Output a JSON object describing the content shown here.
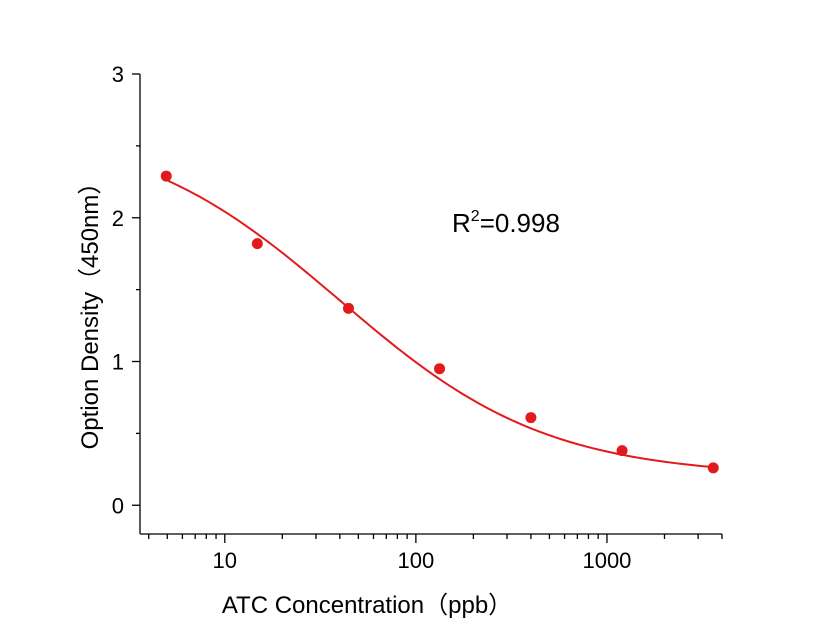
{
  "chart_data": {
    "type": "scatter",
    "xlabel": "ATC Concentration（ppb）",
    "ylabel": "Option Density（450nm）",
    "x_scale": "log",
    "xlim": [
      3.6,
      4000
    ],
    "ylim": [
      -0.2,
      3
    ],
    "x_ticks": [
      10,
      100,
      1000
    ],
    "x_tick_labels": [
      "10",
      "100",
      "1000"
    ],
    "y_ticks": [
      0,
      1,
      2,
      3
    ],
    "y_tick_labels": [
      "0",
      "1",
      "2",
      "3"
    ],
    "points": [
      {
        "x": 4.94,
        "y": 2.29
      },
      {
        "x": 14.8,
        "y": 1.82
      },
      {
        "x": 44.4,
        "y": 1.37
      },
      {
        "x": 133,
        "y": 0.95
      },
      {
        "x": 400,
        "y": 0.61
      },
      {
        "x": 1200,
        "y": 0.38
      },
      {
        "x": 3600,
        "y": 0.26
      }
    ],
    "fit": {
      "model": "4PL",
      "top": 2.65,
      "bottom": 0.2,
      "ec50": 40,
      "hill": 0.8
    },
    "annotation": {
      "prefix": "R",
      "superscript": "2",
      "suffix": "=0.998"
    },
    "colors": {
      "series": "#e31a1c",
      "axis": "#000000"
    },
    "grid": false,
    "legend": "none"
  }
}
